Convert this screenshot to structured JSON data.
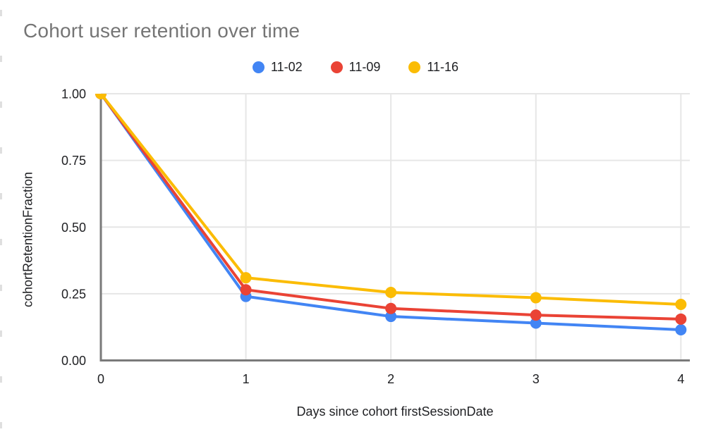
{
  "chart_data": {
    "type": "line",
    "title": "Cohort user retention over time",
    "xlabel": "Days since cohort firstSessionDate",
    "ylabel": "cohortRetentionFraction",
    "x": [
      0,
      1,
      2,
      3,
      4
    ],
    "xtick_labels": [
      "0",
      "1",
      "2",
      "3",
      "4"
    ],
    "ytick_values": [
      0,
      0.25,
      0.5,
      0.75,
      1
    ],
    "ytick_labels": [
      "0.00",
      "0.25",
      "0.50",
      "0.75",
      "1.00"
    ],
    "xlim": [
      0,
      4.06
    ],
    "ylim": [
      0,
      1
    ],
    "grid": true,
    "legend_position": "top-center",
    "series": [
      {
        "name": "11-02",
        "color": "#4285F4",
        "values": [
          1.0,
          0.24,
          0.165,
          0.14,
          0.115
        ]
      },
      {
        "name": "11-09",
        "color": "#EA4335",
        "values": [
          1.0,
          0.265,
          0.195,
          0.17,
          0.155
        ]
      },
      {
        "name": "11-16",
        "color": "#FBBC04",
        "values": [
          1.0,
          0.31,
          0.255,
          0.235,
          0.21
        ]
      }
    ],
    "colors": {
      "title_text": "#757575",
      "axis_text": "#202124",
      "gridline": "#e6e6e6",
      "axis_line": "#7a7a7a",
      "background": "#ffffff"
    }
  }
}
